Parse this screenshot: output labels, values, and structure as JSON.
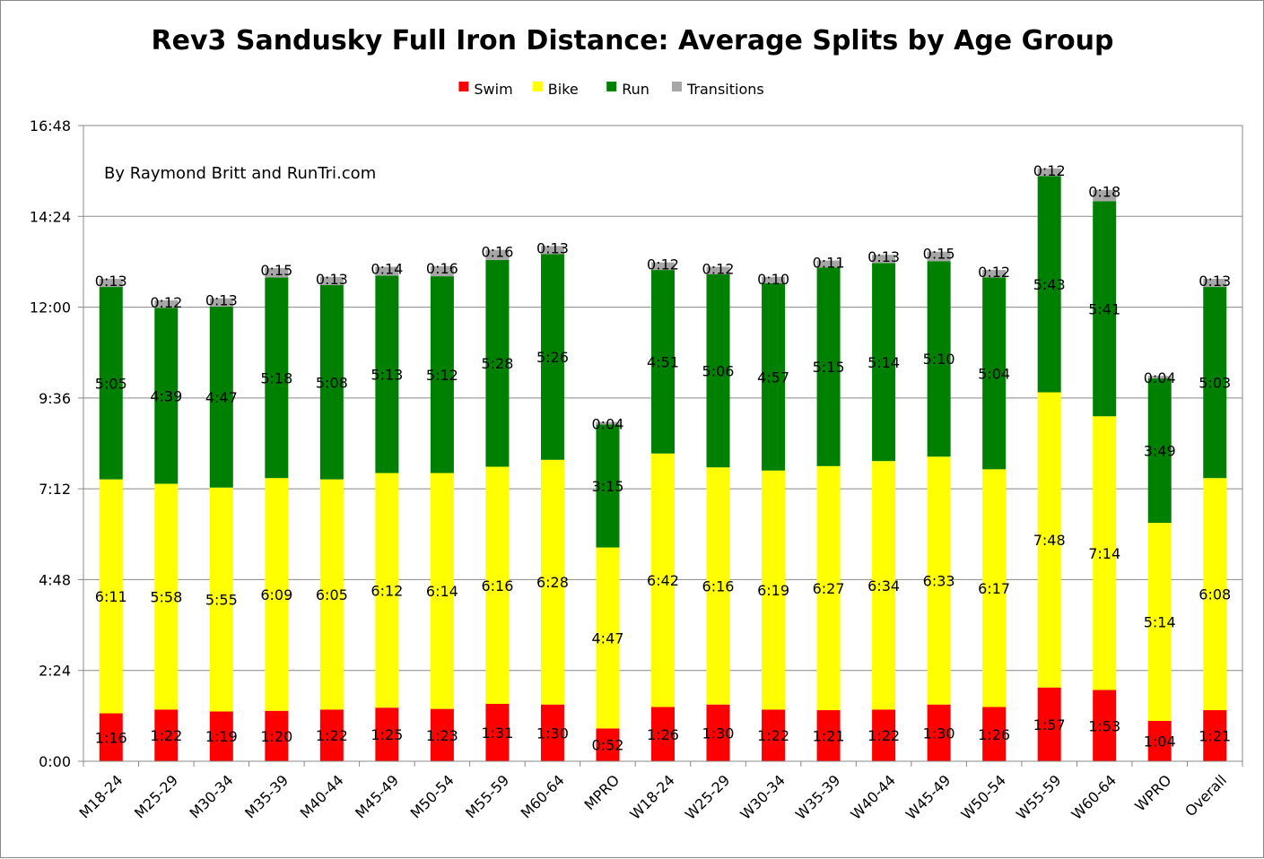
{
  "chart_data": {
    "type": "bar",
    "stacked": true,
    "title": "Rev3 Sandusky Full Iron Distance: Average Splits by Age Group",
    "annotation": "By Raymond Britt and RunTri.com",
    "legend_position": "top",
    "grid": true,
    "ylim": [
      "0:00",
      "16:48"
    ],
    "y_ticks": [
      "0:00",
      "2:24",
      "4:48",
      "7:12",
      "9:36",
      "12:00",
      "14:24",
      "16:48"
    ],
    "categories": [
      "M18-24",
      "M25-29",
      "M30-34",
      "M35-39",
      "M40-44",
      "M45-49",
      "M50-54",
      "M55-59",
      "M60-64",
      "MPRO",
      "W18-24",
      "W25-29",
      "W30-34",
      "W35-39",
      "W40-44",
      "W45-49",
      "W50-54",
      "W55-59",
      "W60-64",
      "WPRO",
      "Overall"
    ],
    "series": [
      {
        "name": "Swim",
        "color": "#ff0000",
        "values": [
          "1:16",
          "1:22",
          "1:19",
          "1:20",
          "1:22",
          "1:25",
          "1:23",
          "1:31",
          "1:30",
          "0:52",
          "1:26",
          "1:30",
          "1:22",
          "1:21",
          "1:22",
          "1:30",
          "1:26",
          "1:57",
          "1:53",
          "1:04",
          "1:21"
        ]
      },
      {
        "name": "Bike",
        "color": "#ffff00",
        "values": [
          "6:11",
          "5:58",
          "5:55",
          "6:09",
          "6:05",
          "6:12",
          "6:14",
          "6:16",
          "6:28",
          "4:47",
          "6:42",
          "6:16",
          "6:19",
          "6:27",
          "6:34",
          "6:33",
          "6:17",
          "7:48",
          "7:14",
          "5:14",
          "6:08"
        ]
      },
      {
        "name": "Run",
        "color": "#008000",
        "values": [
          "5:05",
          "4:39",
          "4:47",
          "5:18",
          "5:08",
          "5:13",
          "5:12",
          "5:28",
          "5:26",
          "3:15",
          "4:51",
          "5:06",
          "4:57",
          "5:15",
          "5:14",
          "5:10",
          "5:04",
          "5:43",
          "5:41",
          "3:49",
          "5:03"
        ]
      },
      {
        "name": "Transitions",
        "color": "#a6a6a6",
        "values": [
          "0:13",
          "0:12",
          "0:13",
          "0:15",
          "0:13",
          "0:14",
          "0:16",
          "0:16",
          "0:13",
          "0:04",
          "0:12",
          "0:12",
          "0:10",
          "0:11",
          "0:13",
          "0:15",
          "0:12",
          "0:12",
          "0:18",
          "0:04",
          "0:13"
        ]
      }
    ]
  }
}
